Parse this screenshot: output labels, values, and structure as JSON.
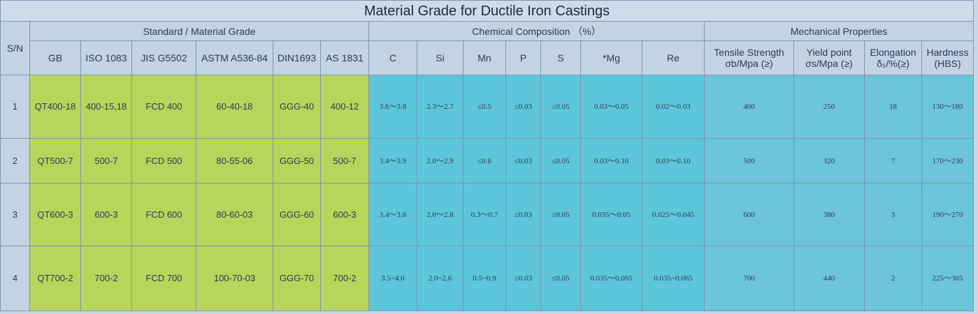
{
  "title": "Material Grade for Ductile Iron Castings",
  "header": {
    "sn": "S/N",
    "groups": [
      "Standard / Material Grade",
      "Chemical Composition （%）",
      "Mechanical Properties"
    ],
    "columns": [
      [
        "GB"
      ],
      [
        "ISO 1083"
      ],
      [
        "JIS G5502"
      ],
      [
        "ASTM A536-84"
      ],
      [
        "DIN1693"
      ],
      [
        "AS 1831"
      ],
      [
        "C"
      ],
      [
        "Si"
      ],
      [
        "Mn"
      ],
      [
        "P"
      ],
      [
        "S"
      ],
      [
        "*Mg"
      ],
      [
        "Re"
      ],
      [
        "Tensile Strength",
        "σb/Mpa (≥)"
      ],
      [
        "Yield point",
        "σs/Mpa (≥)"
      ],
      [
        "Elongation",
        "δ₅/%(≥)"
      ],
      [
        "Hardness",
        "(HBS)"
      ]
    ]
  },
  "table": {
    "rows": [
      [
        "1",
        "QT400-18",
        "400-15,18",
        "FCD 400",
        "60-40-18",
        "GGG-40",
        "400-12",
        "3.6～3.8",
        "2.3～2.7",
        "≤0.5",
        "≤0.03",
        "≤0.05",
        "0.03～0.05",
        "0.02～0.03",
        "400",
        "250",
        "18",
        "130～180"
      ],
      [
        "2",
        "QT500-7",
        "500-7",
        "FCD 500",
        "80-55-06",
        "GGG-50",
        "500-7",
        "3.4～3.9",
        "2.0～2.9",
        "≤0.6",
        "≤0.03",
        "≤0.05",
        "0.03～0.10",
        "0.03～0.10",
        "500",
        "320",
        "7",
        "170～230"
      ],
      [
        "3",
        "QT600-3",
        "600-3",
        "FCD 600",
        "80-60-03",
        "GGG-60",
        "600-3",
        "3.4～3.8",
        "2.0～2.8",
        "0.3～0.7",
        "≤0.03",
        "≤0.05",
        "0.035～0.05",
        "0.025～0.045",
        "600",
        "380",
        "3",
        "190～270"
      ],
      [
        "4",
        "QT700-2",
        "700-2",
        "FCD 700",
        "100-70-03",
        "GGG-70",
        "700-2",
        "3.5~4.0",
        "2.0~2.6",
        "0.5~0.9",
        "≤0.03",
        "≤0.05",
        "0.035～0.065",
        "0.035~0.065",
        "700",
        "440",
        "2",
        "225～305"
      ]
    ]
  }
}
